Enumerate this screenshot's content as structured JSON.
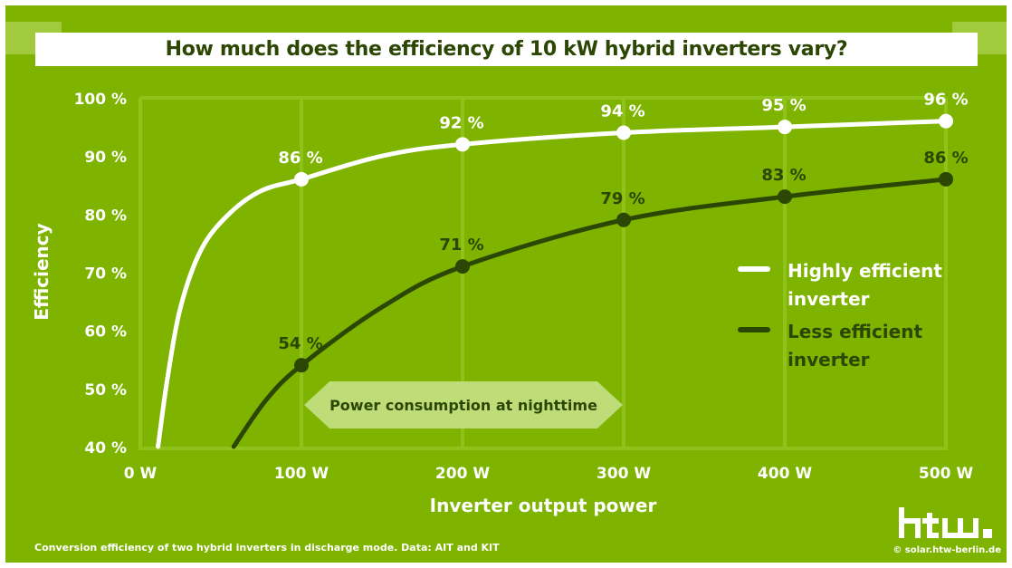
{
  "title": "How much does the efficiency of 10 kW hybrid inverters vary?",
  "caption": "Conversion efficiency of two hybrid inverters in discharge mode. Data: AIT and KIT",
  "credit": "© solar.htw-berlin.de",
  "logo_text": "htw.",
  "annotation": "Power consumption at nighttime",
  "colors": {
    "background": "#7eb400",
    "dark": "#2c4703",
    "light": "#ffffff",
    "grid": "#8fc21a",
    "annotation": "#bedc78"
  },
  "chart_data": {
    "type": "line",
    "title": "How much does the efficiency of 10 kW hybrid inverters vary?",
    "xlabel": "Inverter output power",
    "ylabel": "Efficiency",
    "xlim": [
      0,
      500
    ],
    "ylim": [
      40,
      100
    ],
    "x_ticks": [
      "0 W",
      "100 W",
      "200 W",
      "300 W",
      "400 W",
      "500 W"
    ],
    "y_ticks": [
      "100 %",
      "90 %",
      "80 %",
      "70 %",
      "60 %",
      "50 %",
      "40 %"
    ],
    "grid": true,
    "legend_placement": "right",
    "series": [
      {
        "name": "Highly efficient inverter",
        "color": "#ffffff",
        "curve": [
          [
            11,
            40
          ],
          [
            17,
            52
          ],
          [
            25,
            64
          ],
          [
            38,
            74
          ],
          [
            55,
            80
          ],
          [
            75,
            84
          ],
          [
            100,
            86
          ],
          [
            150,
            90
          ],
          [
            200,
            92
          ],
          [
            300,
            94
          ],
          [
            400,
            95
          ],
          [
            500,
            96
          ]
        ],
        "labeled_points": [
          {
            "x": 100,
            "y": 86,
            "label": "86 %"
          },
          {
            "x": 200,
            "y": 92,
            "label": "92 %"
          },
          {
            "x": 300,
            "y": 94,
            "label": "94 %"
          },
          {
            "x": 400,
            "y": 95,
            "label": "95 %"
          },
          {
            "x": 500,
            "y": 96,
            "label": "96 %"
          }
        ]
      },
      {
        "name": "Less efficient inverter",
        "color": "#2c4703",
        "curve": [
          [
            58,
            40
          ],
          [
            78,
            48
          ],
          [
            100,
            54
          ],
          [
            150,
            64
          ],
          [
            200,
            71
          ],
          [
            300,
            79
          ],
          [
            400,
            83
          ],
          [
            500,
            86
          ]
        ],
        "labeled_points": [
          {
            "x": 100,
            "y": 54,
            "label": "54 %"
          },
          {
            "x": 200,
            "y": 71,
            "label": "71 %"
          },
          {
            "x": 300,
            "y": 79,
            "label": "79 %"
          },
          {
            "x": 400,
            "y": 83,
            "label": "83 %"
          },
          {
            "x": 500,
            "y": 86,
            "label": "86 %"
          }
        ]
      }
    ],
    "legend": [
      {
        "label": "Highly efficient",
        "label2": "inverter"
      },
      {
        "label": "Less efficient",
        "label2": "inverter"
      }
    ]
  }
}
